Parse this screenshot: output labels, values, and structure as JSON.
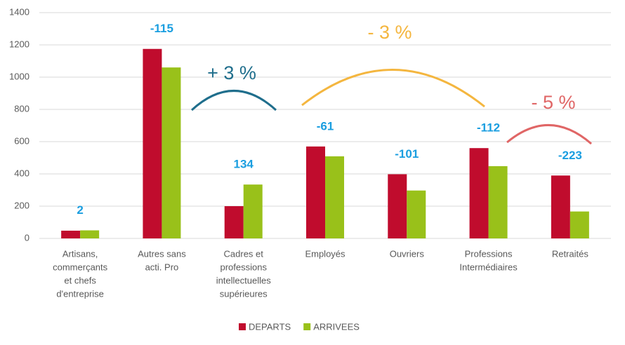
{
  "chart_data": {
    "type": "bar",
    "categories": [
      [
        "Artisans,",
        "commerçants",
        "et chefs",
        "d'entreprise"
      ],
      [
        "Autres sans",
        "acti. Pro"
      ],
      [
        "Cadres et",
        "professions",
        "intellectuelles",
        "supérieures"
      ],
      [
        "Employés"
      ],
      [
        "Ouvriers"
      ],
      [
        "Professions",
        "Intermédiaires"
      ],
      [
        "Retraités"
      ]
    ],
    "series": [
      {
        "name": "DEPARTS",
        "color": "#c00c2d",
        "values": [
          48,
          1175,
          200,
          570,
          398,
          560,
          390
        ]
      },
      {
        "name": "ARRIVEES",
        "color": "#99c11a",
        "values": [
          50,
          1060,
          334,
          509,
          297,
          448,
          167
        ]
      }
    ],
    "differences": [
      2,
      -115,
      134,
      -61,
      -101,
      -112,
      -223
    ],
    "differences_color": "#1a9ee0",
    "annotations": [
      {
        "text": "+ 3 %",
        "color": "#1f6e8c"
      },
      {
        "text": "- 3 %",
        "color": "#f4b63f"
      },
      {
        "text": "- 5 %",
        "color": "#e06666"
      }
    ],
    "ylim": [
      0,
      1400
    ],
    "yticks": [
      0,
      200,
      400,
      600,
      800,
      1000,
      1200,
      1400
    ],
    "grid": true,
    "legend": "bottom"
  }
}
